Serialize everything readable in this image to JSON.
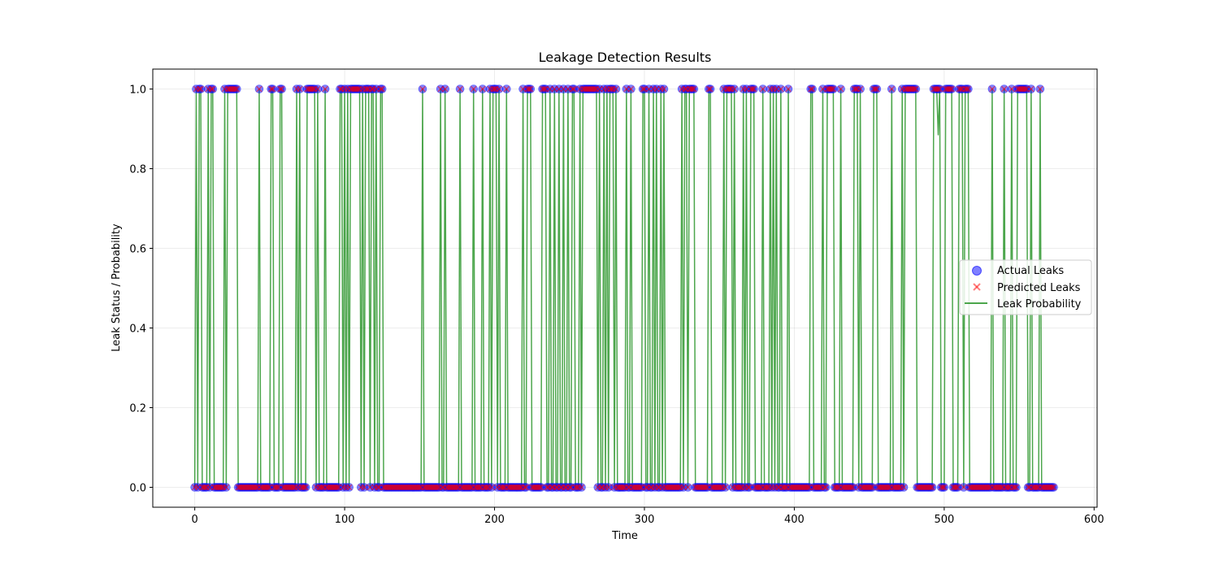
{
  "chart_data": {
    "type": "scatter",
    "title": "Leakage Detection Results",
    "xlabel": "Time",
    "ylabel": "Leak Status / Probability",
    "xlim": [
      -28,
      602
    ],
    "ylim": [
      -0.05,
      1.05
    ],
    "xticks": [
      0,
      100,
      200,
      300,
      400,
      500,
      600
    ],
    "yticks": [
      0.0,
      0.2,
      0.4,
      0.6,
      0.8,
      1.0
    ],
    "grid": true,
    "legend_position": "center-right",
    "n_points": 574,
    "leak_times": [
      1,
      3,
      4,
      9,
      11,
      12,
      20,
      22,
      23,
      24,
      25,
      26,
      27,
      28,
      43,
      51,
      52,
      57,
      58,
      68,
      70,
      75,
      76,
      77,
      78,
      79,
      80,
      82,
      87,
      97,
      98,
      100,
      102,
      104,
      105,
      106,
      107,
      108,
      109,
      110,
      112,
      114,
      115,
      116,
      118,
      119,
      121,
      124,
      125,
      152,
      164,
      167,
      177,
      186,
      192,
      197,
      199,
      200,
      201,
      203,
      208,
      219,
      222,
      223,
      224,
      232,
      233,
      234,
      237,
      240,
      243,
      246,
      249,
      252,
      253,
      257,
      259,
      260,
      261,
      262,
      263,
      264,
      265,
      266,
      267,
      268,
      270,
      273,
      275,
      277,
      278,
      279,
      281,
      288,
      291,
      299,
      300,
      303,
      306,
      308,
      311,
      313,
      325,
      327,
      328,
      330,
      331,
      332,
      333,
      343,
      344,
      353,
      355,
      356,
      357,
      358,
      360,
      366,
      368,
      371,
      372,
      373,
      379,
      384,
      386,
      388,
      391,
      396,
      411,
      412,
      419,
      422,
      423,
      424,
      425,
      426,
      431,
      440,
      441,
      442,
      444,
      453,
      454,
      455,
      465,
      472,
      474,
      475,
      476,
      477,
      478,
      479,
      480,
      481,
      493,
      494,
      495,
      496,
      497,
      501,
      502,
      503,
      504,
      505,
      510,
      511,
      512,
      514,
      515,
      516,
      532,
      540,
      545,
      549,
      550,
      551,
      552,
      553,
      554,
      555,
      558,
      564
    ],
    "prob_overrides": [
      {
        "x": 496,
        "y": 0.885
      }
    ],
    "series": [
      {
        "name": "Actual Leaks",
        "color": "#0000ff",
        "marker": "circle"
      },
      {
        "name": "Predicted Leaks",
        "color": "#ff0000",
        "marker": "x"
      },
      {
        "name": "Leak Probability",
        "color": "#008000",
        "marker": "line"
      }
    ]
  }
}
